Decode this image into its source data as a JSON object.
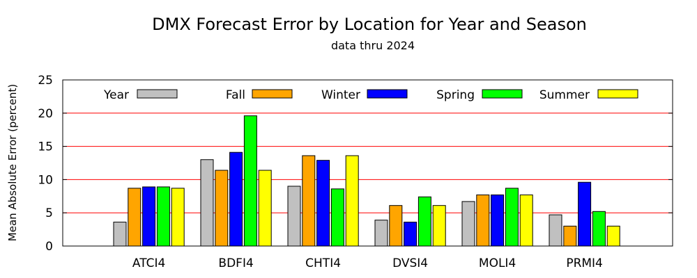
{
  "chart_data": {
    "type": "bar",
    "title": "DMX Forecast Error by Location for Year and Season",
    "subtitle": "data thru 2024",
    "xlabel": "",
    "ylabel": "Mean Absolute Error (percent)",
    "ylim": [
      0,
      25
    ],
    "yticks": [
      "0",
      "5",
      "10",
      "15",
      "20",
      "25"
    ],
    "grid": "horizontal",
    "legend_position": "top",
    "categories": [
      "ATCI4",
      "BDFI4",
      "CHTI4",
      "DVSI4",
      "MOLI4",
      "PRMI4"
    ],
    "series": [
      {
        "name": "Year",
        "color": "#c0c0c0",
        "values": [
          3.6,
          13.0,
          9.0,
          3.9,
          6.7,
          4.7
        ]
      },
      {
        "name": "Fall",
        "color": "#ffa500",
        "values": [
          8.7,
          11.4,
          13.6,
          6.1,
          7.7,
          3.0
        ]
      },
      {
        "name": "Winter",
        "color": "#0000ff",
        "values": [
          8.9,
          14.1,
          12.9,
          3.6,
          7.7,
          9.6
        ]
      },
      {
        "name": "Spring",
        "color": "#00ff00",
        "values": [
          8.9,
          19.6,
          8.6,
          7.4,
          8.7,
          5.2
        ]
      },
      {
        "name": "Summer",
        "color": "#ffff00",
        "values": [
          8.7,
          11.4,
          13.6,
          6.1,
          7.7,
          3.0
        ]
      }
    ]
  }
}
